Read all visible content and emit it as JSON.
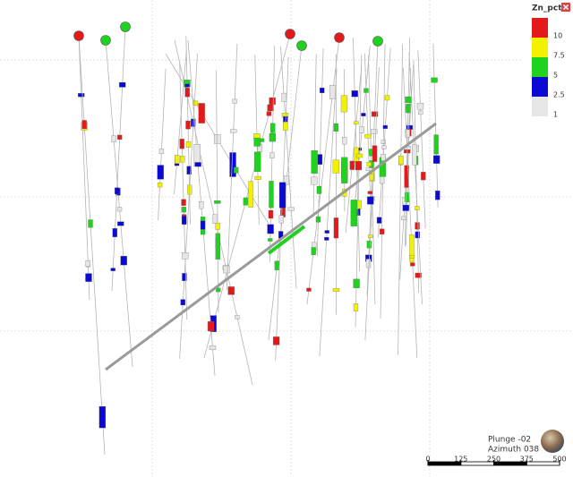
{
  "legend": {
    "title": "Zn_pct",
    "stops": [
      {
        "value": 10,
        "color": "#e41a1a"
      },
      {
        "value": 7.5,
        "color": "#f2f200"
      },
      {
        "value": 5,
        "color": "#1ed21e"
      },
      {
        "value": 2.5,
        "color": "#0a0ad2"
      },
      {
        "value": 1,
        "color": "#e6e6e6"
      }
    ]
  },
  "view": {
    "plunge": "Plunge -02",
    "azimuth": "Azimuth 038"
  },
  "scale_bar": {
    "ticks": [
      0,
      125,
      250,
      375,
      500
    ]
  }
}
